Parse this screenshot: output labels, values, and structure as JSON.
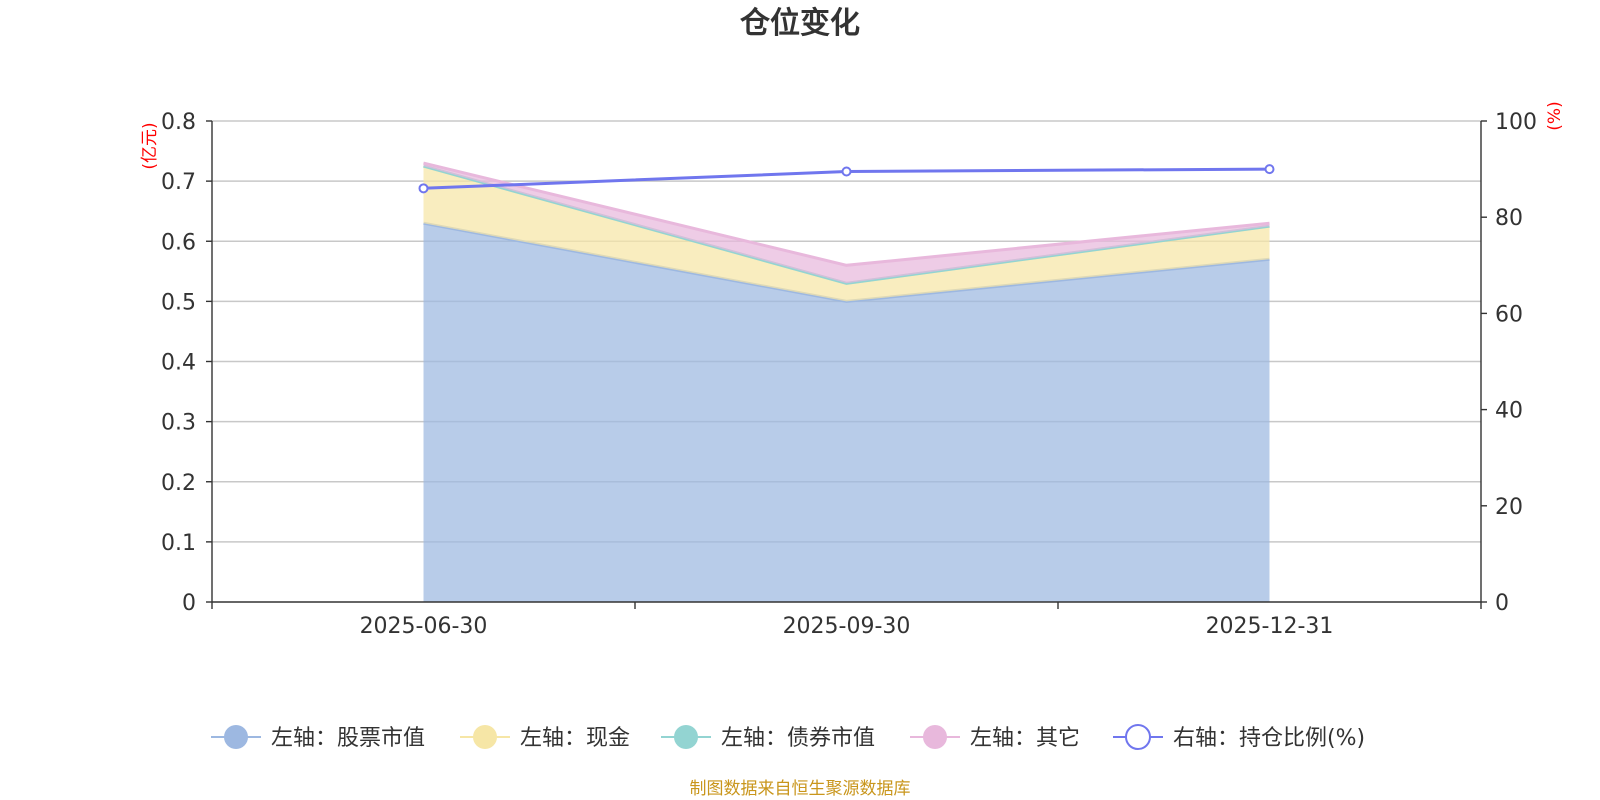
{
  "chart_data": {
    "type": "area",
    "title": "仓位变化",
    "categories": [
      "2025-06-30",
      "2025-09-30",
      "2025-12-31"
    ],
    "left_axis": {
      "unit_label": "(亿元)",
      "ylim": [
        0,
        0.8
      ],
      "ticks": [
        "0",
        "0.1",
        "0.2",
        "0.3",
        "0.4",
        "0.5",
        "0.6",
        "0.7",
        "0.8"
      ]
    },
    "right_axis": {
      "unit_label": "(%)",
      "ylim": [
        0,
        100
      ],
      "ticks": [
        "0",
        "20",
        "40",
        "60",
        "80",
        "100"
      ]
    },
    "series": [
      {
        "name": "左轴：股票市值",
        "axis": "left",
        "kind": "stacked-area",
        "color": "#9db8e1",
        "values": [
          0.63,
          0.5,
          0.57
        ]
      },
      {
        "name": "左轴：现金",
        "axis": "left",
        "kind": "stacked-area",
        "color": "#f6e6a6",
        "values": [
          0.095,
          0.03,
          0.055
        ]
      },
      {
        "name": "左轴：债券市值",
        "axis": "left",
        "kind": "stacked-area",
        "color": "#93d4d2",
        "values": [
          0,
          0,
          0
        ]
      },
      {
        "name": "左轴：其它",
        "axis": "left",
        "kind": "stacked-area",
        "color": "#e8b8dc",
        "values": [
          0.005,
          0.03,
          0.005
        ]
      },
      {
        "name": "右轴：持仓比例(%)",
        "axis": "right",
        "kind": "line",
        "color": "#7076ee",
        "values": [
          86,
          89.5,
          90
        ]
      }
    ],
    "grid": true,
    "legend_position": "bottom"
  },
  "source_note": "制图数据来自恒生聚源数据库"
}
